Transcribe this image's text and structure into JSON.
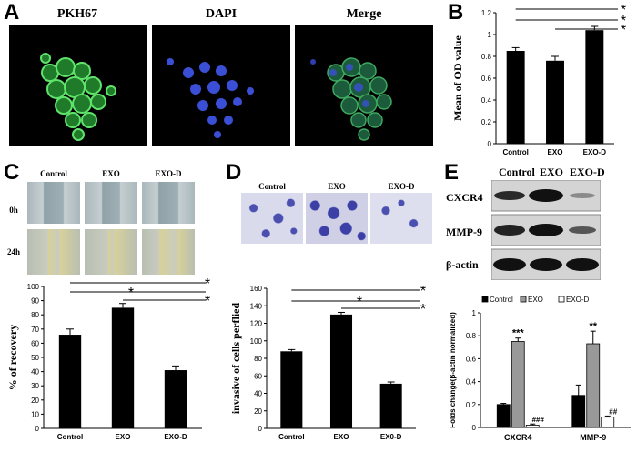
{
  "panel_a": {
    "letter": "A",
    "titles": [
      "PKH67",
      "DAPI",
      "Merge"
    ],
    "colors": {
      "green": "#39c24a",
      "blue": "#3b4fd6"
    }
  },
  "panel_b": {
    "letter": "B",
    "chart_data": {
      "type": "bar",
      "categories": [
        "Control",
        "EXO",
        "EXO-D"
      ],
      "values": [
        0.85,
        0.76,
        1.04
      ],
      "errors": [
        0.03,
        0.04,
        0.035
      ],
      "ylabel": "Mean of OD value",
      "ylim": [
        0,
        1.2
      ],
      "yticks": [
        "0",
        "0.2",
        "0.4",
        "0.6",
        "0.8",
        "1",
        "1.2"
      ],
      "significance": [
        "*",
        "*",
        "*"
      ]
    }
  },
  "panel_c": {
    "letter": "C",
    "group_labels": [
      "Control",
      "EXO",
      "EXO-D"
    ],
    "time_labels": [
      "0h",
      "24h"
    ],
    "chart_data": {
      "type": "bar",
      "categories": [
        "Control",
        "EXO",
        "EXO-D"
      ],
      "values": [
        66,
        85,
        41
      ],
      "errors": [
        4,
        3,
        3
      ],
      "ylabel": "% of recovery",
      "ylim": [
        0,
        100
      ],
      "yticks": [
        "0",
        "10",
        "20",
        "30",
        "40",
        "50",
        "60",
        "70",
        "80",
        "90",
        "100"
      ],
      "significance": [
        "*",
        "*",
        "*"
      ]
    }
  },
  "panel_d": {
    "letter": "D",
    "group_labels": [
      "Control",
      "EXO",
      "EXO-D"
    ],
    "chart_data": {
      "type": "bar",
      "categories": [
        "Control",
        "EXO",
        "EX0-D"
      ],
      "values": [
        88,
        130,
        51
      ],
      "errors": [
        2,
        2.5,
        2
      ],
      "ylabel": "invasive of cells perflied",
      "ylim": [
        0,
        160
      ],
      "yticks": [
        "0",
        "20",
        "40",
        "60",
        "80",
        "100",
        "120",
        "140",
        "160"
      ],
      "significance": [
        "*",
        "*",
        "*"
      ]
    }
  },
  "panel_e": {
    "letter": "E",
    "group_labels": [
      "Control",
      "EXO",
      "EXO-D"
    ],
    "blot_labels": [
      "CXCR4",
      "MMP-9",
      "β-actin"
    ],
    "chart_data": {
      "type": "bar",
      "categories": [
        "CXCR4",
        "MMP-9"
      ],
      "series": [
        {
          "name": "Control",
          "values": [
            0.2,
            0.28
          ],
          "errors": [
            0.01,
            0.09
          ],
          "color": "#000000",
          "marks": [
            "",
            ""
          ]
        },
        {
          "name": "EXO",
          "values": [
            0.75,
            0.73
          ],
          "errors": [
            0.03,
            0.11
          ],
          "color": "#999999",
          "marks": [
            "***",
            "**"
          ]
        },
        {
          "name": "EXO-D",
          "values": [
            0.02,
            0.09
          ],
          "errors": [
            0.01,
            0.01
          ],
          "color": "#ffffff",
          "marks": [
            "###",
            "##"
          ]
        }
      ],
      "ylabel": "Folds change(β-actin normalized)",
      "ylim": [
        0,
        1
      ],
      "yticks": [
        "0",
        "0.2",
        "0.4",
        "0.6",
        "0.8",
        "1"
      ]
    }
  }
}
